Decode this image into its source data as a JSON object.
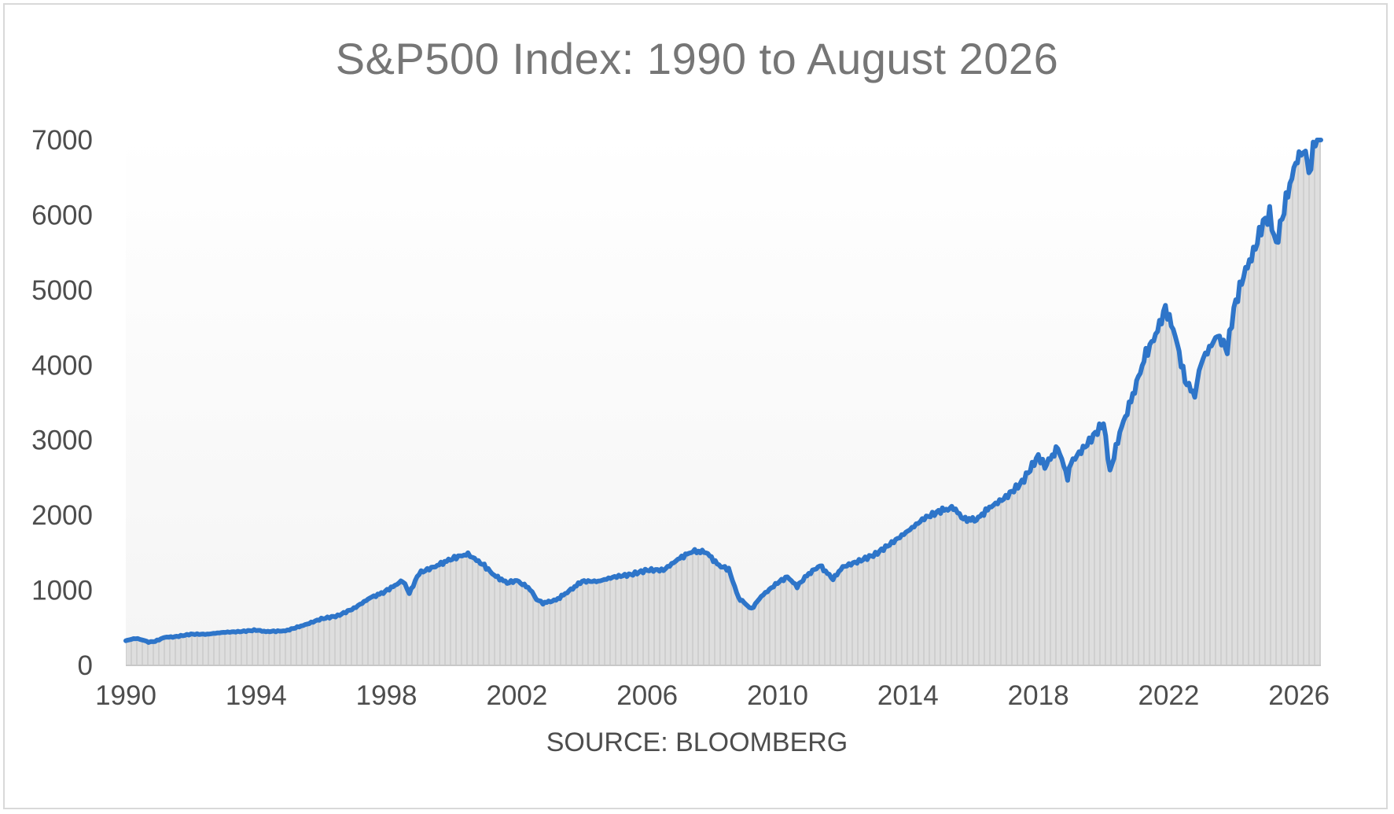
{
  "chart_data": {
    "type": "line",
    "title": "S&P500 Index: 1990 to August 2026",
    "annotation": "SOURCE: BLOOMBERG",
    "xlim": [
      1990,
      2026.67
    ],
    "ylim": [
      0,
      7000
    ],
    "x_ticks": [
      "1990",
      "1994",
      "1998",
      "2002",
      "2006",
      "2010",
      "2014",
      "2018",
      "2022",
      "2026"
    ],
    "y_ticks": [
      "0",
      "1000",
      "2000",
      "3000",
      "4000",
      "5000",
      "6000",
      "7000"
    ],
    "grid": false,
    "legend": "none",
    "series": [
      {
        "color": "#2e75c9",
        "area_color": "#d4d4d4",
        "x": [
          1990.0,
          1990.3,
          1990.5,
          1990.7,
          1990.9,
          1991.2,
          1991.5,
          1992.0,
          1992.5,
          1993.0,
          1993.5,
          1994.0,
          1994.3,
          1994.9,
          1995.5,
          1996.0,
          1996.5,
          1997.0,
          1997.5,
          1997.9,
          1998.5,
          1998.7,
          1999.0,
          1999.5,
          1999.9,
          2000.2,
          2000.5,
          2000.7,
          2001.0,
          2001.3,
          2001.7,
          2002.0,
          2002.4,
          2002.6,
          2002.8,
          2003.2,
          2003.6,
          2004.0,
          2004.5,
          2005.0,
          2005.5,
          2006.0,
          2006.5,
          2007.0,
          2007.4,
          2007.8,
          2008.2,
          2008.5,
          2008.8,
          2009.2,
          2009.5,
          2010.0,
          2010.3,
          2010.6,
          2010.9,
          2011.3,
          2011.7,
          2012.0,
          2012.5,
          2013.0,
          2013.5,
          2014.0,
          2014.5,
          2015.0,
          2015.4,
          2015.7,
          2016.1,
          2016.5,
          2017.0,
          2017.5,
          2018.0,
          2018.2,
          2018.6,
          2018.9,
          2019.0,
          2019.5,
          2020.0,
          2020.2,
          2020.5,
          2020.9,
          2021.3,
          2021.6,
          2021.9,
          2022.2,
          2022.5,
          2022.8,
          2023.0,
          2023.5,
          2023.8,
          2024.0,
          2024.3,
          2024.6,
          2024.9,
          2025.1,
          2025.3,
          2025.6,
          2025.9,
          2026.0,
          2026.2,
          2026.3,
          2026.5,
          2026.67
        ],
        "y": [
          330,
          360,
          340,
          310,
          320,
          375,
          380,
          415,
          415,
          440,
          450,
          470,
          450,
          460,
          540,
          620,
          660,
          760,
          900,
          970,
          1130,
          960,
          1230,
          1320,
          1400,
          1450,
          1480,
          1420,
          1330,
          1200,
          1100,
          1130,
          1020,
          880,
          830,
          870,
          990,
          1120,
          1120,
          1180,
          1210,
          1270,
          1270,
          1430,
          1520,
          1510,
          1330,
          1280,
          900,
          750,
          920,
          1100,
          1180,
          1050,
          1200,
          1330,
          1150,
          1310,
          1390,
          1480,
          1630,
          1790,
          1960,
          2060,
          2100,
          1950,
          1940,
          2100,
          2240,
          2440,
          2790,
          2650,
          2900,
          2500,
          2700,
          2950,
          3230,
          2580,
          3100,
          3600,
          4150,
          4400,
          4760,
          4400,
          3800,
          3600,
          4050,
          4400,
          4200,
          4750,
          5200,
          5500,
          5900,
          6000,
          5600,
          6200,
          6700,
          6850,
          6800,
          6550,
          7000,
          7200
        ]
      }
    ]
  }
}
